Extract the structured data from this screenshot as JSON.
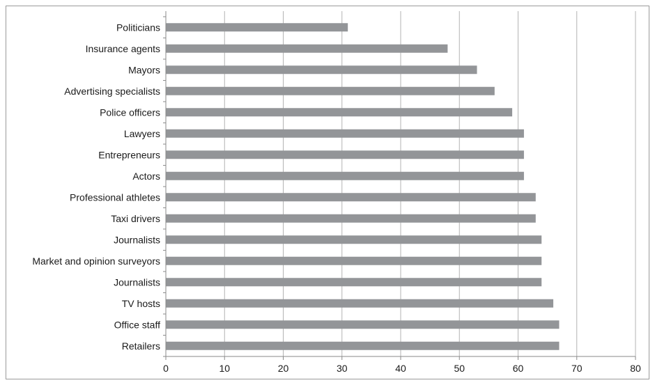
{
  "chart_data": {
    "type": "bar",
    "orientation": "horizontal",
    "categories": [
      "Politicians",
      "Insurance agents",
      "Mayors",
      "Advertising specialists",
      "Police officers",
      "Lawyers",
      "Entrepreneurs",
      "Actors",
      "Professional athletes",
      "Taxi drivers",
      "Journalists",
      "Market and opinion surveyors",
      "Journalists",
      "TV hosts",
      "Office staff",
      "Retailers"
    ],
    "values": [
      31,
      48,
      53,
      56,
      59,
      61,
      61,
      61,
      63,
      63,
      64,
      64,
      64,
      66,
      67,
      67
    ],
    "xlim": [
      0,
      80
    ],
    "xticks": [
      0,
      10,
      20,
      30,
      40,
      50,
      60,
      70,
      80
    ],
    "grid": "vertical",
    "legend": "none",
    "bar_color": "#939598",
    "grid_color": "#b3b3b3"
  }
}
